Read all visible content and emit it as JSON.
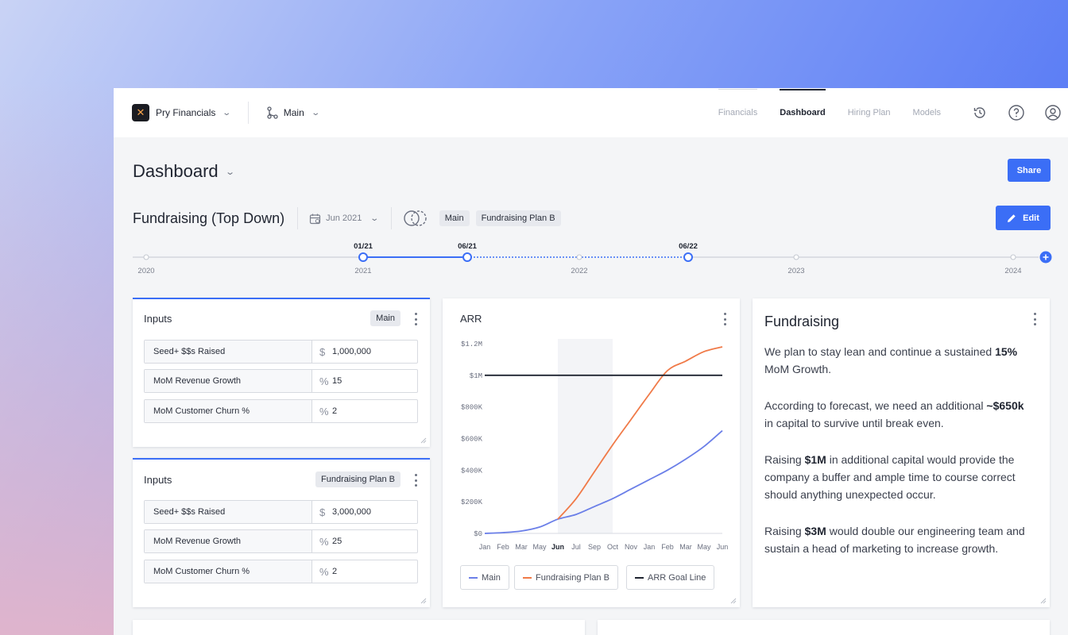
{
  "topbar": {
    "org_name": "Pry Financials",
    "branch_name": "Main",
    "tabs": [
      {
        "label": "Financials"
      },
      {
        "label": "Dashboard"
      },
      {
        "label": "Hiring Plan"
      },
      {
        "label": "Models"
      }
    ]
  },
  "page": {
    "title": "Dashboard",
    "share_label": "Share"
  },
  "scenario": {
    "title": "Fundraising (Top Down)",
    "date": "Jun 2021",
    "pills": [
      "Main",
      "Fundraising Plan B"
    ],
    "edit_label": "Edit"
  },
  "timeline": {
    "years": [
      "2020",
      "2021",
      "2022",
      "2023",
      "2024"
    ],
    "markers": [
      "01/21",
      "06/21",
      "06/22"
    ]
  },
  "inputs_main": {
    "title": "Inputs",
    "tag": "Main",
    "rows": [
      {
        "label": "Seed+ $$s Raised",
        "unit": "$",
        "value": "1,000,000"
      },
      {
        "label": "MoM Revenue Growth",
        "unit": "%",
        "value": "15"
      },
      {
        "label": "MoM Customer Churn %",
        "unit": "%",
        "value": "2"
      }
    ]
  },
  "inputs_b": {
    "title": "Inputs",
    "tag": "Fundraising Plan B",
    "rows": [
      {
        "label": "Seed+ $$s Raised",
        "unit": "$",
        "value": "3,000,000"
      },
      {
        "label": "MoM Revenue Growth",
        "unit": "%",
        "value": "25"
      },
      {
        "label": "MoM Customer Churn %",
        "unit": "%",
        "value": "2"
      }
    ]
  },
  "arr_card": {
    "title": "ARR",
    "legend": [
      "Main",
      "Fundraising Plan B",
      "ARR Goal Line"
    ]
  },
  "chart_data": {
    "type": "line",
    "title": "ARR",
    "categories": [
      "Jan",
      "Feb",
      "Mar",
      "May",
      "Jun",
      "Jul",
      "Sep",
      "Oct",
      "Nov",
      "Jan",
      "Feb",
      "Mar",
      "May",
      "Jun"
    ],
    "y_tick_labels": [
      "$0",
      "$200K",
      "$400K",
      "$600K",
      "$800K",
      "$1M",
      "$1.2M"
    ],
    "ylim": [
      0,
      1200000
    ],
    "highlight_category": "Jun",
    "series": [
      {
        "name": "Main",
        "color": "#6b7fe8",
        "values": [
          0,
          5000,
          15000,
          40000,
          90000,
          120000,
          170000,
          220000,
          280000,
          340000,
          400000,
          470000,
          550000,
          650000
        ]
      },
      {
        "name": "Fundraising Plan B",
        "color": "#f07a48",
        "values": [
          null,
          null,
          null,
          null,
          90000,
          220000,
          390000,
          560000,
          720000,
          880000,
          1030000,
          1090000,
          1150000,
          1180000
        ]
      },
      {
        "name": "ARR Goal Line",
        "color": "#1f2430",
        "values": [
          1000000,
          1000000,
          1000000,
          1000000,
          1000000,
          1000000,
          1000000,
          1000000,
          1000000,
          1000000,
          1000000,
          1000000,
          1000000,
          1000000
        ]
      }
    ]
  },
  "fundraising": {
    "title": "Fundraising",
    "p1_a": "We plan to stay lean and continue a sustained ",
    "p1_b": "15%",
    "p1_c": " MoM Growth.",
    "p2_a": "According to forecast, we need an additional ",
    "p2_b": "~$650k",
    "p2_c": " in capital to survive until break even.",
    "p3_a": "Raising ",
    "p3_b": "$1M",
    "p3_c": " in additional capital would provide the company a buffer and ample time to course correct should anything unexpected occur.",
    "p4_a": "Raising ",
    "p4_b": "$3M",
    "p4_c": " would double our engineering team and sustain a head of marketing to increase growth."
  },
  "colors": {
    "accent": "#3b6ef6",
    "main_line": "#6b7fe8",
    "plan_b_line": "#f07a48",
    "goal_line": "#1f2430"
  }
}
